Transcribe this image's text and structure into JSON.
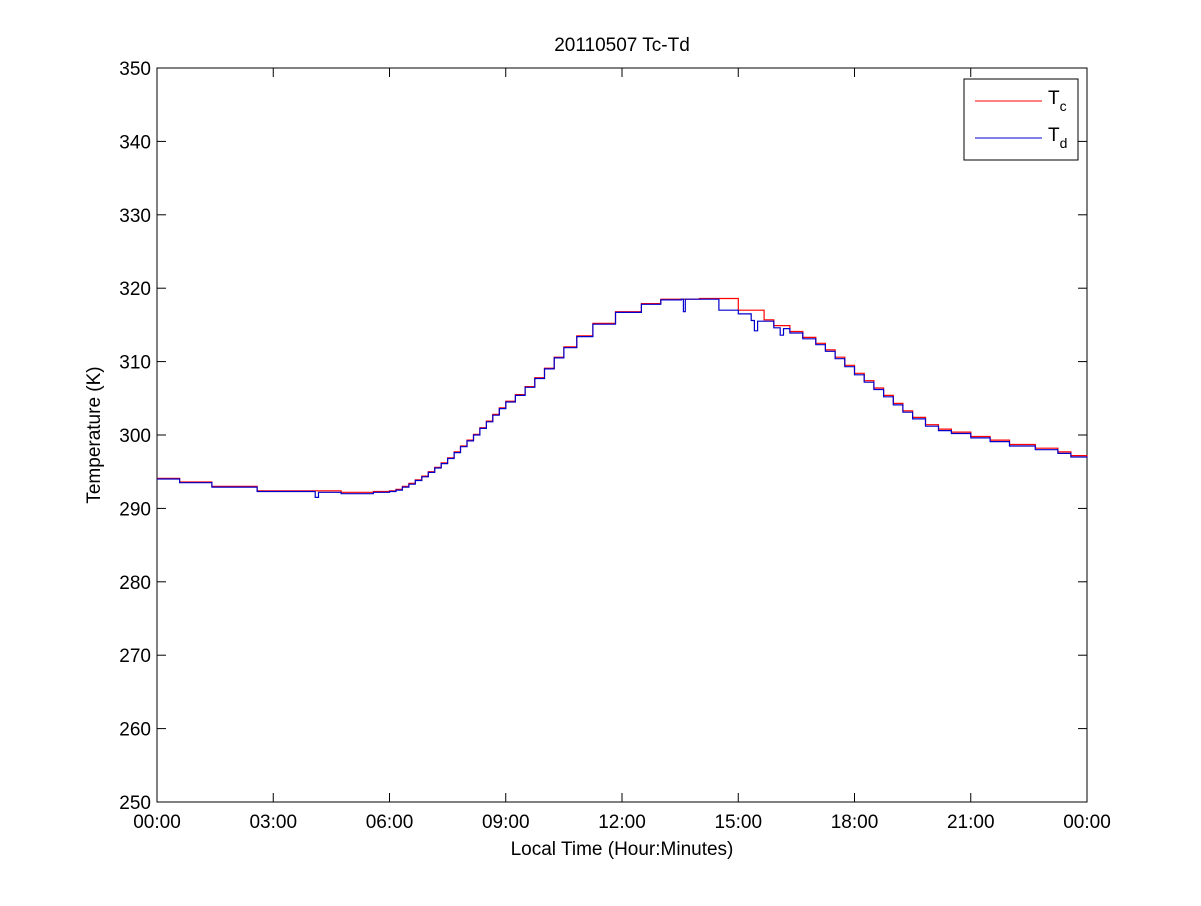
{
  "chart_data": {
    "type": "line",
    "title": "20110507 Tc-Td",
    "xlabel": "Local Time (Hour:Minutes)",
    "ylabel": "Temperature (K)",
    "xlim": [
      "00:00",
      "24:00"
    ],
    "ylim": [
      250,
      350
    ],
    "x_ticks": [
      "00:00",
      "03:00",
      "06:00",
      "09:00",
      "12:00",
      "15:00",
      "18:00",
      "21:00",
      "00:00"
    ],
    "y_ticks": [
      "250",
      "260",
      "270",
      "280",
      "290",
      "300",
      "310",
      "320",
      "330",
      "340",
      "350"
    ],
    "grid": false,
    "legend_position": "top-right",
    "series": [
      {
        "legend_main": "T",
        "legend_sub": "c",
        "color": "#ff0000",
        "x": [
          "00:00",
          "00:35",
          "01:25",
          "02:35",
          "03:00",
          "04:00",
          "04:45",
          "05:35",
          "06:00",
          "06:10",
          "06:20",
          "06:30",
          "06:40",
          "06:50",
          "07:00",
          "07:10",
          "07:20",
          "07:30",
          "07:40",
          "07:50",
          "08:00",
          "08:10",
          "08:20",
          "08:30",
          "08:40",
          "08:50",
          "09:00",
          "09:15",
          "09:30",
          "09:45",
          "10:00",
          "10:15",
          "10:30",
          "10:50",
          "11:15",
          "11:50",
          "12:30",
          "13:00",
          "14:00",
          "14:50",
          "15:00",
          "15:40",
          "15:55",
          "16:20",
          "16:40",
          "17:00",
          "17:15",
          "17:30",
          "17:45",
          "18:00",
          "18:15",
          "18:30",
          "18:45",
          "19:00",
          "19:15",
          "19:30",
          "19:50",
          "20:10",
          "20:30",
          "21:00",
          "21:30",
          "22:00",
          "22:40",
          "23:15",
          "23:35",
          "24:00"
        ],
        "y": [
          294.1,
          293.6,
          293.0,
          292.4,
          292.4,
          292.4,
          292.2,
          292.3,
          292.4,
          292.6,
          293.0,
          293.4,
          293.9,
          294.4,
          295.0,
          295.6,
          296.2,
          296.9,
          297.7,
          298.5,
          299.3,
          300.1,
          301.0,
          301.9,
          302.8,
          303.7,
          304.6,
          305.5,
          306.6,
          307.8,
          309.1,
          310.6,
          312.0,
          313.5,
          315.2,
          316.8,
          317.9,
          318.5,
          318.6,
          318.6,
          317.0,
          315.7,
          314.9,
          314.1,
          313.3,
          312.5,
          311.6,
          310.6,
          309.5,
          308.4,
          307.4,
          306.4,
          305.4,
          304.3,
          303.3,
          302.4,
          301.4,
          300.8,
          300.4,
          299.8,
          299.3,
          298.7,
          298.2,
          297.7,
          297.2,
          297.0
        ]
      },
      {
        "legend_main": "T",
        "legend_sub": "d",
        "color": "#0000cc",
        "x": [
          "00:00",
          "00:35",
          "01:25",
          "02:35",
          "03:00",
          "04:00",
          "04:05",
          "04:10",
          "04:45",
          "05:35",
          "06:00",
          "06:10",
          "06:20",
          "06:30",
          "06:40",
          "06:50",
          "07:00",
          "07:10",
          "07:20",
          "07:30",
          "07:40",
          "07:50",
          "08:00",
          "08:10",
          "08:20",
          "08:30",
          "08:40",
          "08:50",
          "09:00",
          "09:15",
          "09:30",
          "09:45",
          "10:00",
          "10:15",
          "10:30",
          "10:50",
          "11:15",
          "11:50",
          "12:30",
          "13:00",
          "13:32",
          "13:35",
          "13:38",
          "14:00",
          "14:25",
          "14:30",
          "14:50",
          "15:00",
          "15:20",
          "15:25",
          "15:30",
          "15:55",
          "16:05",
          "16:10",
          "16:20",
          "16:40",
          "17:00",
          "17:15",
          "17:30",
          "17:45",
          "18:00",
          "18:15",
          "18:30",
          "18:45",
          "19:00",
          "19:15",
          "19:30",
          "19:50",
          "20:10",
          "20:30",
          "21:00",
          "21:30",
          "22:00",
          "22:40",
          "23:15",
          "23:35",
          "24:00"
        ],
        "y": [
          294.0,
          293.5,
          292.9,
          292.3,
          292.3,
          292.3,
          291.5,
          292.2,
          292.0,
          292.2,
          292.3,
          292.5,
          292.9,
          293.3,
          293.8,
          294.3,
          294.9,
          295.5,
          296.1,
          296.8,
          297.6,
          298.4,
          299.2,
          300.0,
          300.9,
          301.8,
          302.7,
          303.6,
          304.5,
          305.4,
          306.5,
          307.7,
          309.0,
          310.5,
          311.9,
          313.4,
          315.1,
          316.7,
          317.8,
          318.4,
          318.5,
          316.8,
          318.5,
          318.5,
          318.5,
          317.0,
          317.0,
          316.5,
          315.6,
          314.2,
          315.5,
          314.6,
          313.6,
          314.5,
          313.9,
          313.1,
          312.3,
          311.4,
          310.4,
          309.3,
          308.2,
          307.2,
          306.2,
          305.2,
          304.1,
          303.1,
          302.2,
          301.2,
          300.6,
          300.2,
          299.6,
          299.1,
          298.5,
          298.0,
          297.5,
          297.0,
          296.9
        ]
      }
    ]
  }
}
